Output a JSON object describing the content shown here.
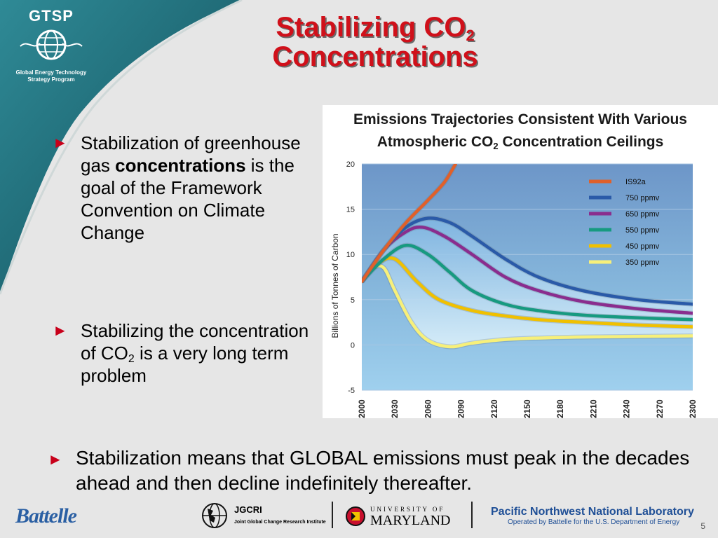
{
  "logo": {
    "name": "GTSP",
    "subtitle": "Global Energy Technology Strategy Program"
  },
  "title": {
    "line1": "Stabilizing CO",
    "line1_sub": "2",
    "line2": "Concentrations"
  },
  "bullets": {
    "b1_a": "Stabilization of greenhouse gas ",
    "b1_bold": "concentrations",
    "b1_b": " is the goal of the Framework Convention on Climate Change",
    "b2_a": "Stabilizing the concentration of CO",
    "b2_sub": "2",
    "b2_b": " is a very long term problem",
    "b3": "Stabilization means that GLOBAL emissions must peak in the decades ahead and then decline indefinitely thereafter."
  },
  "chart_data": {
    "type": "line",
    "title": "Emissions Trajectories Consistent With Various",
    "title_line2_a": "Atmospheric CO",
    "title_line2_sub": "2",
    "title_line2_b": " Concentration Ceilings",
    "ylabel": "Billions of Tonnes of Carbon",
    "xlabel": "",
    "ylim": [
      -5,
      20
    ],
    "xlim": [
      2000,
      2300
    ],
    "yticks": [
      20,
      15,
      10,
      5,
      0,
      -5
    ],
    "xticks": [
      2000,
      2030,
      2060,
      2090,
      2120,
      2150,
      2180,
      2210,
      2240,
      2270,
      2300
    ],
    "legend_position": "top-right",
    "series": [
      {
        "name": "IS92a",
        "color": "#e0602a",
        "x": [
          2000,
          2020,
          2040,
          2060,
          2075,
          2085
        ],
        "y": [
          7,
          10.5,
          13.5,
          16,
          18,
          20
        ]
      },
      {
        "name": "750 ppmv",
        "color": "#2a5aa8",
        "x": [
          2000,
          2020,
          2040,
          2060,
          2080,
          2100,
          2130,
          2160,
          2200,
          2250,
          2300
        ],
        "y": [
          7,
          10.5,
          13,
          14,
          13.5,
          12,
          9.5,
          7.5,
          6,
          5,
          4.5
        ]
      },
      {
        "name": "650 ppmv",
        "color": "#8a2d8e",
        "x": [
          2000,
          2020,
          2040,
          2055,
          2075,
          2100,
          2130,
          2160,
          2200,
          2250,
          2300
        ],
        "y": [
          7,
          10.5,
          12.5,
          13,
          12,
          10,
          7.5,
          6,
          4.8,
          4,
          3.5
        ]
      },
      {
        "name": "550 ppmv",
        "color": "#179a80",
        "x": [
          2000,
          2020,
          2040,
          2060,
          2080,
          2100,
          2130,
          2160,
          2200,
          2250,
          2300
        ],
        "y": [
          7,
          9.5,
          11,
          10,
          8,
          6,
          4.5,
          3.8,
          3.3,
          3,
          2.8
        ]
      },
      {
        "name": "450 ppmv",
        "color": "#f0c000",
        "x": [
          2000,
          2015,
          2030,
          2050,
          2070,
          2100,
          2130,
          2160,
          2200,
          2250,
          2300
        ],
        "y": [
          7,
          9,
          9.5,
          7,
          5,
          3.8,
          3.2,
          2.8,
          2.5,
          2.2,
          2
        ]
      },
      {
        "name": "350 ppmv",
        "color": "#f7f07a",
        "x": [
          2000,
          2010,
          2020,
          2030,
          2045,
          2060,
          2080,
          2100,
          2130,
          2170,
          2220,
          2300
        ],
        "y": [
          7,
          8.5,
          8.5,
          6,
          2.5,
          0.5,
          -0.2,
          0.2,
          0.6,
          0.8,
          0.9,
          1
        ]
      }
    ]
  },
  "footer": {
    "battelle": "Battelle",
    "jgcri": "JGCRI",
    "jgcri_sub": "Joint Global Change Research Institute",
    "umd_top": "UNIVERSITY OF",
    "umd_bottom": "MARYLAND",
    "pnnl": "Pacific Northwest National Laboratory",
    "pnnl_sub": "Operated by Battelle for the U.S. Department of Energy",
    "page": "5"
  },
  "colors": {
    "title": "#d0101a",
    "arrow": "#c8001a",
    "corner": "#1c6a78"
  }
}
